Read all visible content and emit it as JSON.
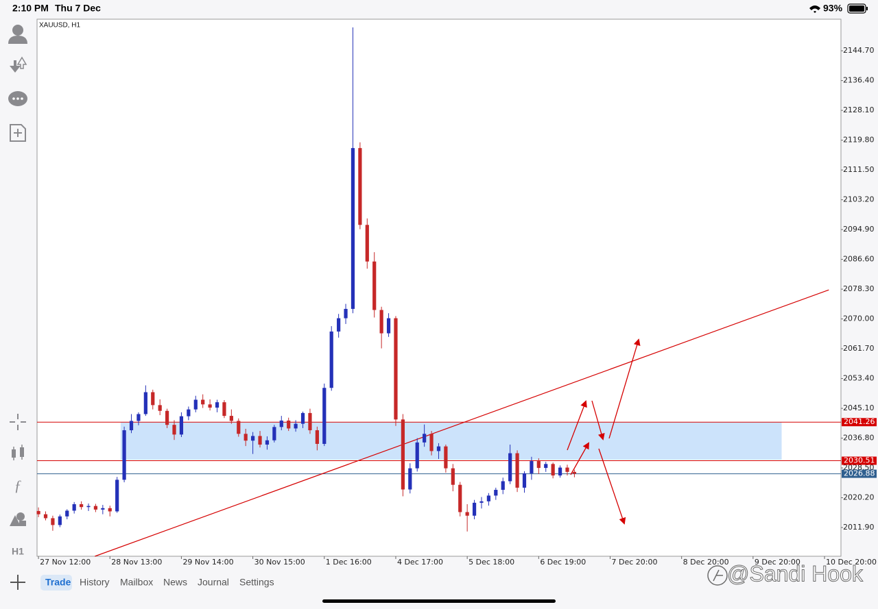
{
  "status_bar": {
    "time": "2:10 PM",
    "date": "Thu 7 Dec",
    "battery": "93%"
  },
  "toolbar": {
    "timeframe": "H1"
  },
  "tabs": [
    "Trade",
    "History",
    "Mailbox",
    "News",
    "Journal",
    "Settings"
  ],
  "watermark": "@Sandi Hook",
  "chart_data": {
    "type": "candlestick",
    "title": "XAUUSD, H1",
    "up_color": "#2431b8",
    "down_color": "#c62828",
    "ohlc": [
      [
        2016.5,
        2017.5,
        2014.8,
        2015.6
      ],
      [
        2015.6,
        2016.4,
        2013.9,
        2014.5
      ],
      [
        2014.5,
        2015.2,
        2011.0,
        2012.6
      ],
      [
        2012.6,
        2015.5,
        2012.0,
        2015.0
      ],
      [
        2015.0,
        2017.0,
        2014.2,
        2016.6
      ],
      [
        2016.6,
        2019.0,
        2015.8,
        2018.4
      ],
      [
        2018.4,
        2019.2,
        2016.9,
        2017.6
      ],
      [
        2017.6,
        2018.6,
        2016.5,
        2017.9
      ],
      [
        2017.9,
        2018.5,
        2016.2,
        2016.9
      ],
      [
        2016.9,
        2018.2,
        2015.6,
        2017.3
      ],
      [
        2017.3,
        2018.0,
        2015.0,
        2016.4
      ],
      [
        2016.4,
        2026.0,
        2016.0,
        2025.2
      ],
      [
        2025.2,
        2040.0,
        2024.5,
        2039.0
      ],
      [
        2039.0,
        2043.5,
        2038.2,
        2041.6
      ],
      [
        2041.6,
        2044.0,
        2040.4,
        2043.5
      ],
      [
        2043.5,
        2051.5,
        2043.0,
        2049.6
      ],
      [
        2049.6,
        2050.3,
        2044.8,
        2046.0
      ],
      [
        2046.0,
        2047.6,
        2043.2,
        2044.4
      ],
      [
        2044.4,
        2045.0,
        2039.6,
        2040.5
      ],
      [
        2040.5,
        2041.8,
        2036.3,
        2037.8
      ],
      [
        2037.8,
        2044.0,
        2037.1,
        2042.9
      ],
      [
        2042.9,
        2045.6,
        2041.8,
        2044.8
      ],
      [
        2044.8,
        2048.6,
        2044.0,
        2047.5
      ],
      [
        2047.5,
        2049.0,
        2045.2,
        2046.2
      ],
      [
        2046.2,
        2047.6,
        2044.5,
        2045.3
      ],
      [
        2045.3,
        2047.5,
        2044.0,
        2046.8
      ],
      [
        2046.8,
        2047.4,
        2042.4,
        2043.0
      ],
      [
        2043.0,
        2044.8,
        2040.8,
        2041.6
      ],
      [
        2041.6,
        2042.3,
        2037.2,
        2038.0
      ],
      [
        2038.0,
        2039.4,
        2034.6,
        2036.1
      ],
      [
        2036.1,
        2038.5,
        2032.4,
        2037.4
      ],
      [
        2037.4,
        2038.8,
        2034.2,
        2035.0
      ],
      [
        2035.0,
        2037.3,
        2033.6,
        2036.2
      ],
      [
        2036.2,
        2040.5,
        2035.6,
        2039.9
      ],
      [
        2039.9,
        2043.0,
        2039.0,
        2041.7
      ],
      [
        2041.7,
        2042.5,
        2038.8,
        2039.5
      ],
      [
        2039.5,
        2041.8,
        2038.6,
        2040.8
      ],
      [
        2040.8,
        2044.2,
        2039.6,
        2043.8
      ],
      [
        2043.8,
        2045.0,
        2038.0,
        2039.0
      ],
      [
        2039.0,
        2040.0,
        2033.4,
        2035.2
      ],
      [
        2035.2,
        2052.0,
        2034.6,
        2050.8
      ],
      [
        2050.8,
        2068.0,
        2050.0,
        2066.5
      ],
      [
        2066.5,
        2071.4,
        2064.8,
        2070.2
      ],
      [
        2070.2,
        2074.2,
        2068.6,
        2072.8
      ],
      [
        2072.8,
        2151.2,
        2071.6,
        2117.6
      ],
      [
        2117.6,
        2119.2,
        2095.0,
        2096.2
      ],
      [
        2096.2,
        2098.0,
        2084.0,
        2086.0
      ],
      [
        2086.0,
        2088.6,
        2070.4,
        2072.5
      ],
      [
        2072.5,
        2073.4,
        2061.8,
        2066.0
      ],
      [
        2066.0,
        2071.6,
        2065.0,
        2070.2
      ],
      [
        2070.2,
        2070.8,
        2040.2,
        2042.0
      ],
      [
        2042.0,
        2043.5,
        2020.6,
        2022.5
      ],
      [
        2022.5,
        2029.8,
        2021.4,
        2028.4
      ],
      [
        2028.4,
        2036.8,
        2027.5,
        2035.6
      ],
      [
        2035.6,
        2040.6,
        2034.4,
        2038.0
      ],
      [
        2038.0,
        2038.8,
        2032.0,
        2033.2
      ],
      [
        2033.2,
        2035.4,
        2031.0,
        2034.5
      ],
      [
        2034.5,
        2035.0,
        2027.2,
        2028.4
      ],
      [
        2028.4,
        2029.6,
        2022.0,
        2023.8
      ],
      [
        2023.8,
        2024.6,
        2015.0,
        2016.2
      ],
      [
        2016.2,
        2018.4,
        2010.8,
        2015.2
      ],
      [
        2015.2,
        2019.6,
        2014.2,
        2018.8
      ],
      [
        2018.8,
        2020.4,
        2017.2,
        2019.2
      ],
      [
        2019.2,
        2021.5,
        2018.0,
        2020.8
      ],
      [
        2020.8,
        2023.0,
        2019.6,
        2022.4
      ],
      [
        2022.4,
        2025.8,
        2021.2,
        2024.8
      ],
      [
        2024.8,
        2035.0,
        2024.0,
        2032.6
      ],
      [
        2032.6,
        2033.4,
        2021.8,
        2023.0
      ],
      [
        2023.0,
        2027.6,
        2021.6,
        2027.0
      ],
      [
        2027.0,
        2031.6,
        2025.2,
        2030.4
      ],
      [
        2030.4,
        2031.2,
        2026.8,
        2028.5
      ],
      [
        2028.5,
        2030.2,
        2027.4,
        2029.6
      ],
      [
        2029.6,
        2030.0,
        2025.6,
        2026.4
      ],
      [
        2026.4,
        2029.2,
        2025.8,
        2028.6
      ],
      [
        2028.6,
        2029.4,
        2026.4,
        2027.4
      ],
      [
        2027.4,
        2028.0,
        2025.9,
        2026.88
      ]
    ],
    "xlim": [
      -0.2,
      112.3
    ],
    "xticks": [
      {
        "value": 0,
        "label": "27 Nov 12:00"
      },
      {
        "value": 10,
        "label": "28 Nov 13:00"
      },
      {
        "value": 20,
        "label": "29 Nov 14:00"
      },
      {
        "value": 30,
        "label": "30 Nov 15:00"
      },
      {
        "value": 40,
        "label": "1 Dec 16:00"
      },
      {
        "value": 50,
        "label": "4 Dec 17:00"
      },
      {
        "value": 60,
        "label": "5 Dec 18:00"
      },
      {
        "value": 70,
        "label": "6 Dec 19:00"
      },
      {
        "value": 80,
        "label": "7 Dec 20:00"
      },
      {
        "value": 90,
        "label": "8 Dec 20:00"
      },
      {
        "value": 100,
        "label": "9 Dec 20:00"
      },
      {
        "value": 110,
        "label": "10 Dec 20:00"
      }
    ],
    "ylim": [
      2003.9,
      2153.5
    ],
    "yticks": [
      {
        "value": 2144.7,
        "label": "2144.70"
      },
      {
        "value": 2136.4,
        "label": "2136.40"
      },
      {
        "value": 2128.1,
        "label": "2128.10"
      },
      {
        "value": 2119.8,
        "label": "2119.80"
      },
      {
        "value": 2111.5,
        "label": "2111.50"
      },
      {
        "value": 2103.2,
        "label": "2103.20"
      },
      {
        "value": 2094.9,
        "label": "2094.90"
      },
      {
        "value": 2086.6,
        "label": "2086.60"
      },
      {
        "value": 2078.3,
        "label": "2078.30"
      },
      {
        "value": 2070,
        "label": "2070.00"
      },
      {
        "value": 2061.7,
        "label": "2061.70"
      },
      {
        "value": 2053.4,
        "label": "2053.40"
      },
      {
        "value": 2045.1,
        "label": "2045.10"
      },
      {
        "value": 2036.8,
        "label": "2036.80"
      },
      {
        "value": 2028.5,
        "label": "2028.50"
      },
      {
        "value": 2020.2,
        "label": "2020.20"
      },
      {
        "value": 2011.9,
        "label": "2011.90"
      }
    ],
    "zone": {
      "x": [
        11.5,
        104
      ],
      "y": [
        2030.8,
        2041.2
      ],
      "color": "#cce3fb"
    },
    "trendline": {
      "x": [
        7.9,
        110.6
      ],
      "y": [
        2003.9,
        2078.1
      ],
      "color": "#d50000"
    },
    "levels": [
      {
        "value": 2041.26,
        "color": "#d50000"
      },
      {
        "value": 2030.51,
        "color": "#d50000"
      },
      {
        "value": 2026.88,
        "color": "#2f5f8f"
      }
    ]
  }
}
